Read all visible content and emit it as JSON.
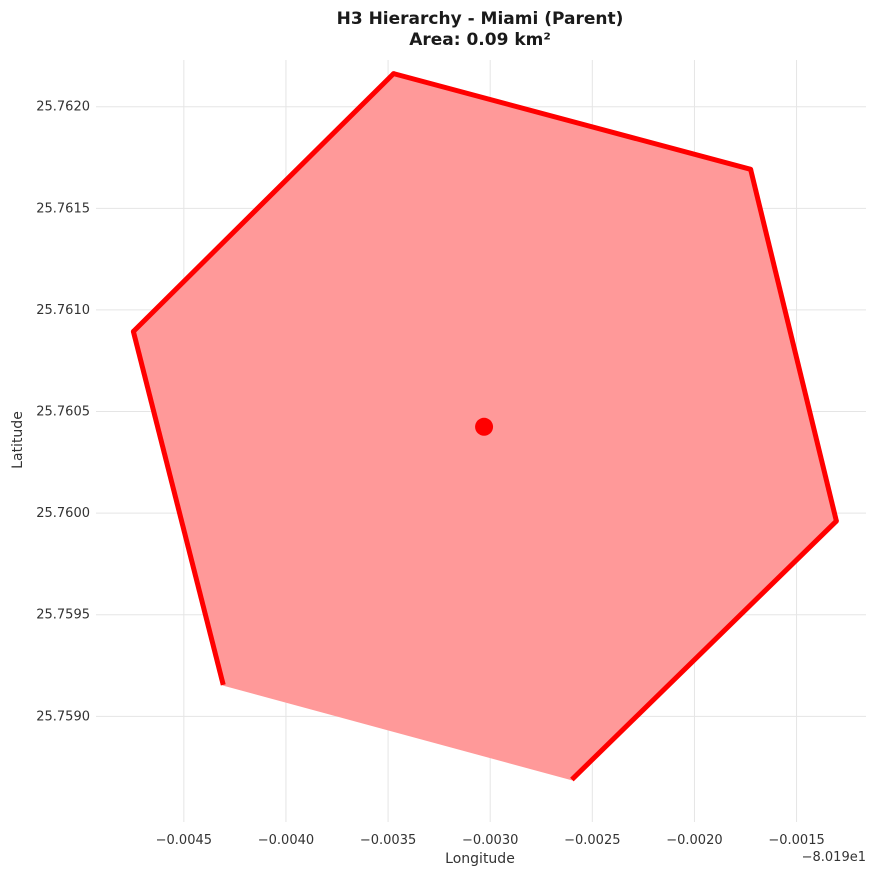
{
  "chart_data": {
    "type": "scatter",
    "title_line1": "H3 Hierarchy - Miami (Parent)",
    "title_line2": "Area: 0.09 km²",
    "xlabel": "Longitude",
    "ylabel": "Latitude",
    "x_offset_label": "−8.019e1",
    "xlim": [
      -0.00493,
      -0.00116
    ],
    "ylim": [
      25.75848,
      25.76223
    ],
    "x_ticks": [
      -0.0045,
      -0.004,
      -0.0035,
      -0.003,
      -0.0025,
      -0.002,
      -0.0015
    ],
    "x_tick_labels": [
      "−0.0045",
      "−0.0040",
      "−0.0035",
      "−0.0030",
      "−0.0025",
      "−0.0020",
      "−0.0015"
    ],
    "y_ticks": [
      25.759,
      25.7595,
      25.76,
      25.7605,
      25.761,
      25.7615,
      25.762
    ],
    "y_tick_labels": [
      "25.7590",
      "25.7595",
      "25.7600",
      "25.7605",
      "25.7610",
      "25.7615",
      "25.7620"
    ],
    "grid": true,
    "polygon": {
      "fill_color": "#ff9999",
      "stroke_color": "#ff0000",
      "vertices": [
        {
          "x": -0.003473,
          "y": 25.762163
        },
        {
          "x": -0.001725,
          "y": 25.761692
        },
        {
          "x": -0.001305,
          "y": 25.759961
        },
        {
          "x": -0.0026,
          "y": 25.758689
        },
        {
          "x": -0.004307,
          "y": 25.759155
        },
        {
          "x": -0.004747,
          "y": 25.760894
        }
      ],
      "outlined_edges": [
        [
          4,
          5
        ],
        [
          5,
          0
        ],
        [
          0,
          1
        ],
        [
          1,
          2
        ],
        [
          2,
          3
        ]
      ]
    },
    "center_point": {
      "x": -0.00303,
      "y": 25.760425,
      "color": "#ff0000"
    }
  }
}
